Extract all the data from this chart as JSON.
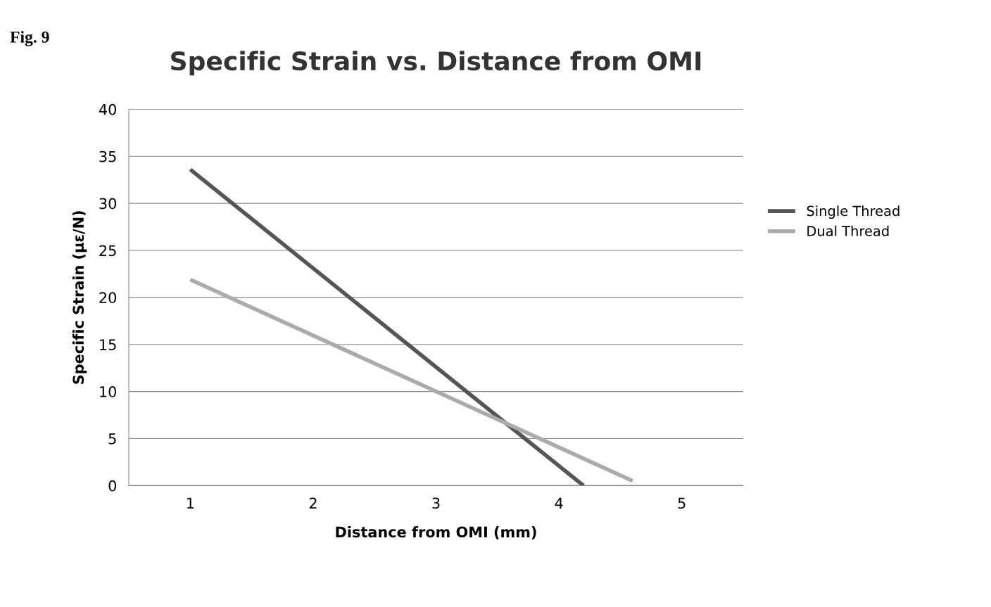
{
  "chart_data": {
    "type": "line",
    "title": "Specific Strain vs. Distance from OMI",
    "xlabel": "Distance from OMI (mm)",
    "ylabel": "Specific Strain (με/N)",
    "annotations": [
      "Fig. 9"
    ],
    "series": [
      {
        "name": "Single Thread",
        "color": "#555555",
        "x": [
          1,
          4.2
        ],
        "values": [
          33.6,
          0
        ]
      },
      {
        "name": "Dual Thread",
        "color": "#ababab",
        "x": [
          1,
          4.6
        ],
        "values": [
          21.9,
          0.5
        ]
      }
    ],
    "xlim": [
      0.5,
      5.5
    ],
    "xticks": [
      1,
      2,
      3,
      4,
      5
    ],
    "ylim": [
      0,
      40
    ],
    "yticks": [
      0,
      5,
      10,
      15,
      20,
      25,
      30,
      35,
      40
    ],
    "grid": "y",
    "legend": "right",
    "marker": "none",
    "line_style": "solid"
  }
}
